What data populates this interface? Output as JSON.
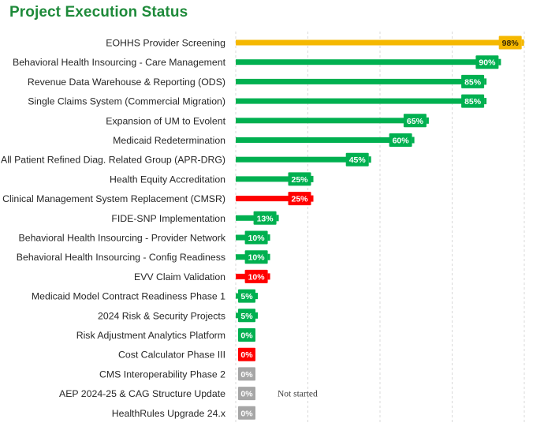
{
  "page": {
    "title": "Project Execution Status"
  },
  "colors": {
    "title": "#1e8a3a",
    "on_track": "#00b050",
    "at_risk": "#ff0000",
    "warning": "#f5b800",
    "not_started": "#a6a6a6",
    "gridline": "#d9d9d9"
  },
  "chart_data": {
    "type": "bar",
    "orientation": "horizontal",
    "title": "Project Execution Status",
    "xlim": [
      0,
      100
    ],
    "value_format": "percent",
    "grid": "vertical dashed",
    "categories": [
      "EOHHS Provider Screening",
      "Behavioral Health Insourcing - Care Management",
      "Revenue Data Warehouse & Reporting (ODS)",
      "Single Claims System (Commercial Migration)",
      "Expansion of UM to Evolent",
      "Medicaid Redetermination",
      "All Patient Refined Diag. Related Group (APR-DRG)",
      "Health Equity Accreditation",
      "Clinical Management System Replacement (CMSR)",
      "FIDE-SNP Implementation",
      "Behavioral Health Insourcing - Provider Network",
      "Behavioral Health Insourcing - Config Readiness",
      "EVV Claim Validation",
      "Medicaid Model Contract Readiness Phase 1",
      "2024 Risk & Security Projects",
      "Risk Adjustment Analytics Platform",
      "Cost Calculator Phase III",
      "CMS Interoperability Phase 2",
      "AEP 2024-25 & CAG Structure Update",
      "HealthRules Upgrade 24.x"
    ],
    "values": [
      98,
      90,
      85,
      85,
      65,
      60,
      45,
      25,
      25,
      13,
      10,
      10,
      10,
      5,
      5,
      0,
      0,
      0,
      0,
      0
    ],
    "labels": [
      "98%",
      "90%",
      "85%",
      "85%",
      "65%",
      "60%",
      "45%",
      "25%",
      "25%",
      "13%",
      "10%",
      "10%",
      "10%",
      "5%",
      "5%",
      "0%",
      "0%",
      "0%",
      "0%",
      "0%"
    ],
    "status": [
      "warning",
      "on_track",
      "on_track",
      "on_track",
      "on_track",
      "on_track",
      "on_track",
      "on_track",
      "at_risk",
      "on_track",
      "on_track",
      "on_track",
      "at_risk",
      "on_track",
      "on_track",
      "on_track",
      "at_risk",
      "not_started",
      "not_started",
      "not_started"
    ],
    "annotations": [
      {
        "category": "AEP 2024-25 & CAG Structure Update",
        "text": "Not started"
      }
    ]
  }
}
